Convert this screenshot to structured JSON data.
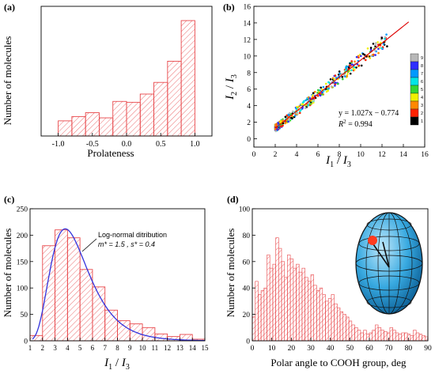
{
  "chart_data": [
    {
      "id": "a",
      "panel_label": "(a)",
      "type": "bar",
      "style": "hatched-outline",
      "xlabel": "Prolateness",
      "ylabel": "Number of molecules",
      "xlim": [
        -1.25,
        1.25
      ],
      "ylim": [
        0,
        300
      ],
      "xticks": [
        "-1.0",
        "-0.5",
        "0.0",
        "0.5",
        "1.0"
      ],
      "yticks": [],
      "bins": [
        {
          "x0": -1.0,
          "x1": -0.8,
          "value": 35
        },
        {
          "x0": -0.8,
          "x1": -0.6,
          "value": 45
        },
        {
          "x0": -0.6,
          "x1": -0.4,
          "value": 54
        },
        {
          "x0": -0.4,
          "x1": -0.2,
          "value": 42
        },
        {
          "x0": -0.2,
          "x1": 0.0,
          "value": 80
        },
        {
          "x0": 0.0,
          "x1": 0.2,
          "value": 78
        },
        {
          "x0": 0.2,
          "x1": 0.4,
          "value": 97
        },
        {
          "x0": 0.4,
          "x1": 0.6,
          "value": 124
        },
        {
          "x0": 0.6,
          "x1": 0.8,
          "value": 173
        },
        {
          "x0": 0.8,
          "x1": 1.0,
          "value": 267
        }
      ],
      "color": "#e8474a"
    },
    {
      "id": "b",
      "panel_label": "(b)",
      "type": "scatter",
      "xlabel_main": "I",
      "xlabel_sub1": "1",
      "xlabel_sub2": "3",
      "ylabel_main": "I",
      "ylabel_sub1": "2",
      "ylabel_sub2": "3",
      "xlim": [
        0,
        16
      ],
      "ylim": [
        -1,
        16
      ],
      "xticks": [
        "0",
        "2",
        "4",
        "6",
        "8",
        "10",
        "12",
        "14",
        "16"
      ],
      "yticks": [
        "0",
        "2",
        "4",
        "6",
        "8",
        "10",
        "12",
        "14",
        "16"
      ],
      "fit_slope": 1.027,
      "fit_intercept": -0.774,
      "fit_range": [
        2,
        14.5
      ],
      "equation": "y = 1.027x − 0.774",
      "r2_label": "R",
      "r2_sup": "2",
      "r2_value": " = 0.994",
      "colorbar_labels": [
        "9",
        "8",
        "7",
        "6",
        "5",
        "4",
        "3",
        "2",
        "1"
      ],
      "colorbar_colors": [
        "#b8b8b8",
        "#2e2eff",
        "#0099ff",
        "#00e5e5",
        "#33d633",
        "#f0f000",
        "#ff8800",
        "#ff2200",
        "#000000"
      ],
      "line_color": "#dd0000"
    },
    {
      "id": "c",
      "panel_label": "(c)",
      "type": "bar",
      "style": "hatched-outline",
      "xlabel_main": "I",
      "xlabel_sub1": "1",
      "xlabel_sub2": "3",
      "ylabel": "Number of molecules",
      "xlim": [
        1,
        15
      ],
      "ylim": [
        0,
        250
      ],
      "xticks": [
        "1",
        "2",
        "3",
        "4",
        "5",
        "6",
        "7",
        "8",
        "9",
        "10",
        "11",
        "12",
        "13",
        "14",
        "15"
      ],
      "yticks": [
        "0",
        "50",
        "100",
        "150",
        "200",
        "250"
      ],
      "bins": [
        {
          "x0": 1,
          "x1": 2,
          "value": 10
        },
        {
          "x0": 2,
          "x1": 3,
          "value": 180
        },
        {
          "x0": 3,
          "x1": 4,
          "value": 210
        },
        {
          "x0": 4,
          "x1": 5,
          "value": 195
        },
        {
          "x0": 5,
          "x1": 6,
          "value": 135
        },
        {
          "x0": 6,
          "x1": 7,
          "value": 102
        },
        {
          "x0": 7,
          "x1": 8,
          "value": 58
        },
        {
          "x0": 8,
          "x1": 9,
          "value": 38
        },
        {
          "x0": 9,
          "x1": 10,
          "value": 32
        },
        {
          "x0": 10,
          "x1": 11,
          "value": 25
        },
        {
          "x0": 11,
          "x1": 12,
          "value": 13
        },
        {
          "x0": 12,
          "x1": 13,
          "value": 8
        },
        {
          "x0": 13,
          "x1": 14,
          "value": 12
        },
        {
          "x0": 14,
          "x1": 15,
          "value": 3
        }
      ],
      "fit_name": "Log-normal ditribution",
      "fit_params": "m* = 1.5 , s* = 0.4",
      "fit_m": 1.5,
      "fit_s": 0.4,
      "fit_peak": 212,
      "color": "#e8474a",
      "fit_color": "#3333dd"
    },
    {
      "id": "d",
      "panel_label": "(d)",
      "type": "bar",
      "style": "hatched-outline",
      "xlabel": "Polar angle to COOH group, deg",
      "ylabel": "Number of molecules",
      "xlim": [
        0,
        90
      ],
      "ylim": [
        0,
        100
      ],
      "xticks": [
        "0",
        "10",
        "20",
        "30",
        "40",
        "50",
        "60",
        "70",
        "80",
        "90"
      ],
      "yticks": [
        "0",
        "20",
        "40",
        "60",
        "80",
        "100"
      ],
      "bin_width": 1.5,
      "values": [
        18,
        45,
        35,
        38,
        40,
        65,
        55,
        58,
        78,
        70,
        60,
        48,
        65,
        62,
        55,
        58,
        52,
        55,
        48,
        45,
        50,
        42,
        38,
        40,
        35,
        30,
        32,
        35,
        28,
        25,
        22,
        20,
        18,
        15,
        12,
        10,
        8,
        6,
        8,
        5,
        6,
        8,
        12,
        10,
        8,
        7,
        6,
        10,
        8,
        6,
        5,
        6,
        6,
        5,
        4,
        8,
        6,
        5,
        4,
        3
      ],
      "color": "#e8474a"
    }
  ]
}
